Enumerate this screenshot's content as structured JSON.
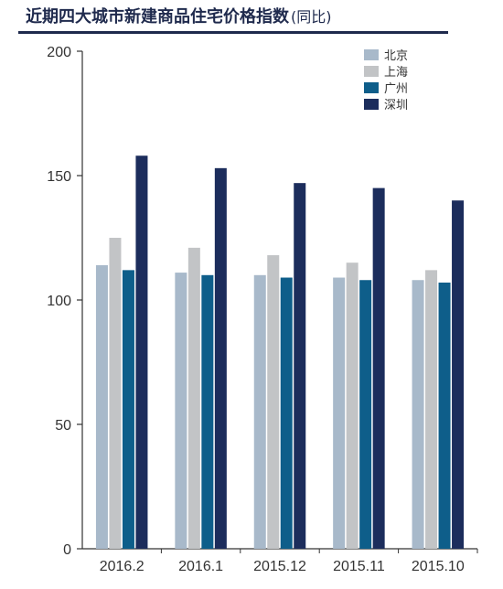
{
  "title": {
    "main": "近期四大城市新建商品住宅价格指数",
    "sub": "(同比)"
  },
  "chart_data": {
    "type": "bar",
    "categories": [
      "2016.2",
      "2016.1",
      "2015.12",
      "2015.11",
      "2015.10"
    ],
    "series": [
      {
        "name": "北京",
        "color": "#a8b9ca",
        "values": [
          114,
          111,
          110,
          109,
          108
        ]
      },
      {
        "name": "上海",
        "color": "#c2c4c6",
        "values": [
          125,
          121,
          118,
          115,
          112
        ]
      },
      {
        "name": "广州",
        "color": "#0e5e8a",
        "values": [
          112,
          110,
          109,
          108,
          107
        ]
      },
      {
        "name": "深圳",
        "color": "#1c2d5c",
        "values": [
          158,
          153,
          147,
          145,
          140
        ]
      }
    ],
    "ylim": [
      0,
      200
    ],
    "yticks": [
      0,
      50,
      100,
      150,
      200
    ],
    "grid": false,
    "legend_position": "top-right"
  }
}
